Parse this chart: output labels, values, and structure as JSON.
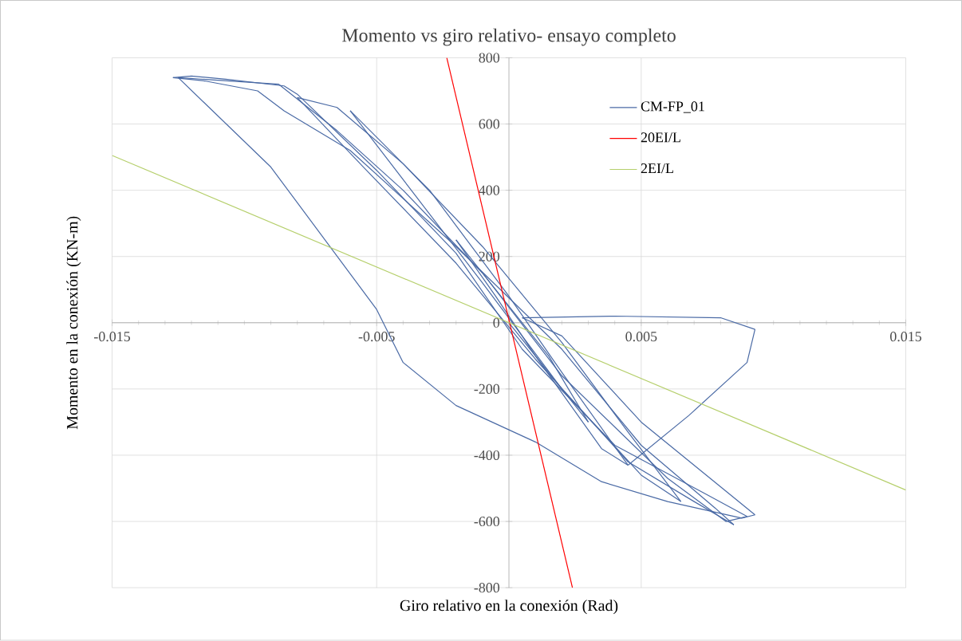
{
  "chart_data": {
    "type": "line",
    "title": "Momento vs giro relativo- ensayo completo",
    "xlabel": "Giro relativo en la conexión (Rad)",
    "ylabel": "Momento en la conexión (KN-m)",
    "xlim": [
      -0.015,
      0.015
    ],
    "ylim": [
      -800,
      800
    ],
    "xticks": [
      -0.015,
      -0.005,
      0.005,
      0.015
    ],
    "yticks": [
      -800,
      -600,
      -400,
      -200,
      0,
      200,
      400,
      600,
      800
    ],
    "grid": true,
    "legend": "top right",
    "marker": "none",
    "line_style": "solid",
    "series": [
      {
        "name": "CM-FP_01",
        "color": "#4a6aa5",
        "x": [
          0,
          0.0015,
          0.003
        ],
        "values": [
          0,
          -150,
          -300
        ]
      },
      {
        "color": "#4a6aa5",
        "x": [
          0.003,
          0.0015,
          -0.0005,
          -0.002
        ],
        "values": [
          -300,
          -100,
          100,
          250
        ]
      },
      {
        "color": "#4a6aa5",
        "x": [
          -0.002,
          -0.0005,
          0.001,
          0.0035,
          0.0045
        ],
        "values": [
          250,
          80,
          -100,
          -380,
          -430
        ]
      },
      {
        "color": "#4a6aa5",
        "x": [
          0.0045,
          0.002,
          0,
          -0.003,
          -0.005,
          -0.006
        ],
        "values": [
          -430,
          -150,
          80,
          400,
          560,
          640
        ]
      },
      {
        "color": "#4a6aa5",
        "x": [
          -0.006,
          -0.0035,
          -0.001,
          0.002,
          0.005,
          0.0065
        ],
        "values": [
          640,
          380,
          120,
          -200,
          -460,
          -540
        ]
      },
      {
        "color": "#4a6aa5",
        "x": [
          0.0065,
          0.0045,
          0.002,
          -0.001,
          -0.004,
          -0.0065,
          -0.008
        ],
        "values": [
          -540,
          -330,
          -60,
          230,
          480,
          650,
          680
        ]
      },
      {
        "color": "#4a6aa5",
        "x": [
          -0.008,
          -0.0055,
          -0.002,
          0.001,
          0.0045,
          0.007,
          0.0085
        ],
        "values": [
          680,
          470,
          180,
          -110,
          -420,
          -540,
          -610
        ]
      },
      {
        "color": "#4a6aa5",
        "x": [
          0.0085,
          0.0078,
          0.005,
          0.002,
          -0.002,
          -0.006,
          -0.0085,
          -0.0095,
          -0.0115,
          -0.0127
        ],
        "values": [
          -610,
          -560,
          -370,
          -80,
          230,
          520,
          640,
          700,
          730,
          740
        ]
      },
      {
        "color": "#4a6aa5",
        "x": [
          -0.0127,
          -0.012,
          -0.0107,
          -0.0085,
          -0.008,
          -0.005,
          -0.002,
          0.0005,
          0.004,
          0.0075,
          0.009
        ],
        "values": [
          740,
          745,
          735,
          715,
          690,
          460,
          210,
          -80,
          -370,
          -520,
          -585
        ]
      },
      {
        "color": "#4a6aa5",
        "x": [
          0.009,
          0.0082,
          0.006,
          0.002,
          -0.001,
          -0.004,
          -0.0065,
          -0.0087,
          -0.0125
        ],
        "values": [
          -585,
          -600,
          -470,
          -160,
          150,
          400,
          580,
          720,
          740
        ]
      },
      {
        "color": "#4a6aa5",
        "x": [
          -0.0125,
          -0.009,
          -0.005,
          -0.004,
          -0.002,
          0.001,
          0.0035,
          0.006,
          0.0088,
          0.0093
        ],
        "values": [
          740,
          470,
          40,
          -120,
          -250,
          -360,
          -480,
          -540,
          -590,
          -580
        ]
      },
      {
        "color": "#4a6aa5",
        "x": [
          0.0093,
          0.005,
          0.002,
          0.0005
        ],
        "values": [
          -580,
          -300,
          -40,
          15
        ]
      },
      {
        "color": "#4a6aa5",
        "x": [
          0.0005,
          0.004,
          0.008,
          0.0093
        ],
        "values": [
          15,
          20,
          15,
          -20
        ]
      },
      {
        "color": "#4a6aa5",
        "x": [
          0.0093,
          0.009,
          0.0068,
          0.0045
        ],
        "values": [
          -20,
          -120,
          -280,
          -430
        ]
      },
      {
        "name": "20EI/L",
        "color": "#ff0000",
        "x": [
          -0.00235,
          0.0024
        ],
        "values": [
          800,
          -800
        ]
      },
      {
        "name": "2EI/L",
        "color": "#b5cf6b",
        "x": [
          -0.015,
          0.015
        ],
        "values": [
          505,
          -505
        ]
      }
    ]
  }
}
